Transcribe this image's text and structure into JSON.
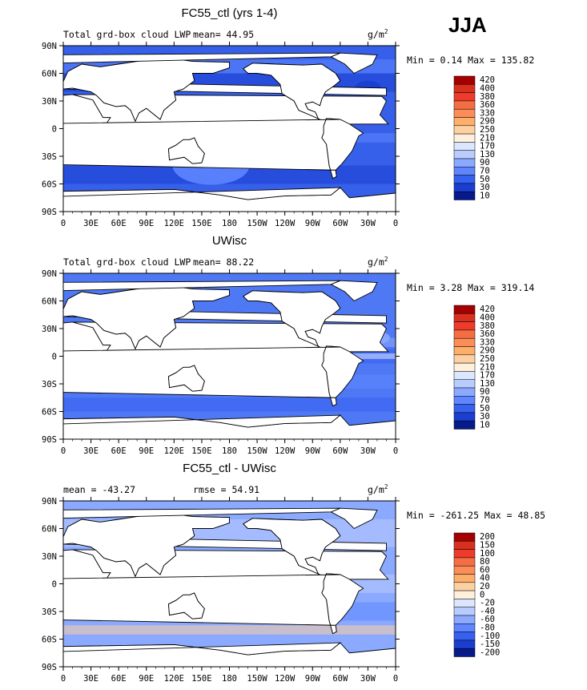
{
  "season": "JJA",
  "colors": {
    "ocean_base": "#3b5fe0",
    "land": "#ffffff",
    "ice": "#ffffff",
    "coast": "#000000"
  },
  "chart_data": [
    {
      "type": "heatmap",
      "title": "FC55_ctl (yrs 1-4)",
      "variable": "Total grd-box cloud LWP",
      "mean_text": "mean=  44.95",
      "units": "g/m",
      "units_sup": "2",
      "minmax_text": "Min =   0.14 Max = 135.82",
      "x_ticks": [
        "0",
        "30E",
        "60E",
        "90E",
        "120E",
        "150E",
        "180",
        "150W",
        "120W",
        "90W",
        "60W",
        "30W",
        "0"
      ],
      "y_ticks": [
        "90N",
        "60N",
        "30N",
        "0",
        "30S",
        "60S",
        "90S"
      ],
      "xlim": [
        0,
        360
      ],
      "ylim": [
        -90,
        90
      ],
      "colorbar_levels": [
        "420",
        "400",
        "380",
        "360",
        "330",
        "290",
        "250",
        "210",
        "170",
        "130",
        "90",
        "70",
        "50",
        "30",
        "10"
      ],
      "colorbar_colors": [
        "#a50000",
        "#d7301f",
        "#ef3b2c",
        "#f46d43",
        "#fc8d59",
        "#fdae6b",
        "#fdd0a2",
        "#fff0dc",
        "#dce6ff",
        "#b9ccff",
        "#8aa9ff",
        "#5f86ff",
        "#3660f0",
        "#1a3ed0",
        "#061a8c"
      ],
      "base_color": "#3760ea",
      "features": [
        {
          "lon": 260,
          "lat": 25,
          "color": "#8aa9ff",
          "r": 8
        },
        {
          "lon": 330,
          "lat": 45,
          "color": "#1a3ed0",
          "r": 10
        },
        {
          "lon": 160,
          "lat": -40,
          "color": "#5f86ff",
          "r": 30
        }
      ]
    },
    {
      "type": "heatmap",
      "title": "UWisc",
      "variable": "Total grd-box cloud LWP",
      "mean_text": "mean=  88.22",
      "units": "g/m",
      "units_sup": "2",
      "minmax_text": "Min =   3.28 Max = 319.14",
      "x_ticks": [
        "0",
        "30E",
        "60E",
        "90E",
        "120E",
        "150E",
        "180",
        "150W",
        "120W",
        "90W",
        "60W",
        "30W",
        "0"
      ],
      "y_ticks": [
        "90N",
        "60N",
        "30N",
        "0",
        "30S",
        "60S",
        "90S"
      ],
      "xlim": [
        0,
        360
      ],
      "ylim": [
        -90,
        90
      ],
      "colorbar_levels": [
        "420",
        "400",
        "380",
        "360",
        "330",
        "290",
        "250",
        "210",
        "170",
        "130",
        "90",
        "70",
        "50",
        "30",
        "10"
      ],
      "colorbar_colors": [
        "#a50000",
        "#d7301f",
        "#ef3b2c",
        "#f46d43",
        "#fc8d59",
        "#fdae6b",
        "#fdd0a2",
        "#fff0dc",
        "#dce6ff",
        "#b9ccff",
        "#8aa9ff",
        "#5f86ff",
        "#3660f0",
        "#1a3ed0",
        "#061a8c"
      ],
      "base_color": "#4f78f5",
      "features": [
        {
          "lon": 270,
          "lat": 5,
          "color": "#fff0dc",
          "r": 6
        },
        {
          "lon": 230,
          "lat": 25,
          "color": "#8aa9ff",
          "r": 10
        },
        {
          "lon": 340,
          "lat": 20,
          "color": "#8aa9ff",
          "r": 10
        }
      ]
    },
    {
      "type": "heatmap",
      "title": "FC55_ctl - UWisc",
      "mean_text": "mean = -43.27",
      "rmse_text": "rmse =  54.91",
      "units": "g/m",
      "units_sup": "2",
      "minmax_text": "Min = -261.25 Max =  48.85",
      "x_ticks": [
        "0",
        "30E",
        "60E",
        "90E",
        "120E",
        "150E",
        "180",
        "150W",
        "120W",
        "90W",
        "60W",
        "30W",
        "0"
      ],
      "y_ticks": [
        "90N",
        "60N",
        "30N",
        "0",
        "30S",
        "60S",
        "90S"
      ],
      "xlim": [
        0,
        360
      ],
      "ylim": [
        -90,
        90
      ],
      "colorbar_levels": [
        "200",
        "150",
        "100",
        "80",
        "60",
        "40",
        "20",
        "0",
        "-20",
        "-40",
        "-60",
        "-80",
        "-100",
        "-150",
        "-200"
      ],
      "colorbar_colors": [
        "#a50000",
        "#d7301f",
        "#ef3b2c",
        "#f46d43",
        "#fc8d59",
        "#fdae6b",
        "#fdd0a2",
        "#fff0dc",
        "#dce6ff",
        "#b9ccff",
        "#8aa9ff",
        "#5f86ff",
        "#3660f0",
        "#1a3ed0",
        "#061a8c"
      ],
      "base_color": "#8aa9ff",
      "features": [
        {
          "lon": 235,
          "lat": 30,
          "color": "#fc8d59",
          "r": 6
        },
        {
          "lon": 335,
          "lat": 20,
          "color": "#fdae6b",
          "r": 6
        },
        {
          "lon": 180,
          "lat": 5,
          "color": "#1a3ed0",
          "r": 6
        }
      ]
    }
  ]
}
